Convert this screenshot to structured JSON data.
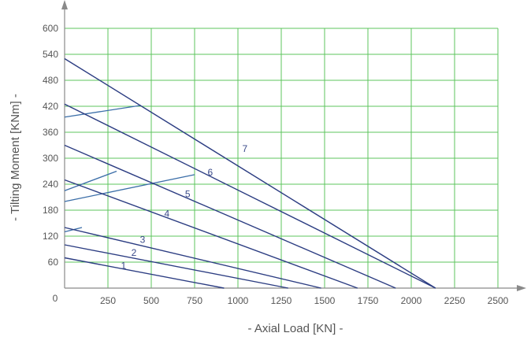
{
  "colors": {
    "grid": "#5ec45e",
    "curve": "#2c3d82",
    "rating": "#3b6ea8",
    "axis": "#8a8a8a",
    "text": "#555555"
  },
  "chart_data": {
    "type": "line",
    "xlabel": "-   Axial Load  [KN]   -",
    "ylabel": "-  Tilting Moment  [KNm]  -",
    "xlim": [
      0,
      2500
    ],
    "ylim": [
      0,
      600
    ],
    "origin_label": "0",
    "x_ticks": [
      "250",
      "500",
      "750",
      "1000",
      "1250",
      "1500",
      "1750",
      "2000",
      "2250",
      "2500"
    ],
    "y_ticks": [
      "60",
      "120",
      "180",
      "240",
      "300",
      "360",
      "420",
      "480",
      "540",
      "600"
    ],
    "grid": true,
    "series": [
      {
        "name": "1",
        "x": [
          0,
          920
        ],
        "y": [
          70,
          0
        ]
      },
      {
        "name": "2",
        "x": [
          0,
          1290
        ],
        "y": [
          100,
          0
        ]
      },
      {
        "name": "3",
        "x": [
          0,
          1480
        ],
        "y": [
          140,
          0
        ]
      },
      {
        "name": "4",
        "x": [
          0,
          1690
        ],
        "y": [
          250,
          0
        ]
      },
      {
        "name": "5",
        "x": [
          0,
          1910
        ],
        "y": [
          330,
          0
        ]
      },
      {
        "name": "6",
        "x": [
          0,
          2140
        ],
        "y": [
          425,
          0
        ]
      },
      {
        "name": "7",
        "x": [
          0,
          2140
        ],
        "y": [
          530,
          0
        ]
      }
    ],
    "rating_lines": [
      {
        "x": [
          0,
          100
        ],
        "y": [
          130,
          140
        ]
      },
      {
        "x": [
          0,
          300
        ],
        "y": [
          225,
          270
        ]
      },
      {
        "x": [
          0,
          750
        ],
        "y": [
          200,
          262
        ]
      },
      {
        "x": [
          0,
          440
        ],
        "y": [
          395,
          422
        ]
      }
    ],
    "labels": [
      {
        "text": "1",
        "x": 340,
        "y": 45
      },
      {
        "text": "2",
        "x": 400,
        "y": 75
      },
      {
        "text": "3",
        "x": 450,
        "y": 105
      },
      {
        "text": "4",
        "x": 590,
        "y": 165
      },
      {
        "text": "5",
        "x": 710,
        "y": 210
      },
      {
        "text": "6",
        "x": 840,
        "y": 260
      },
      {
        "text": "7",
        "x": 1040,
        "y": 315
      }
    ]
  }
}
